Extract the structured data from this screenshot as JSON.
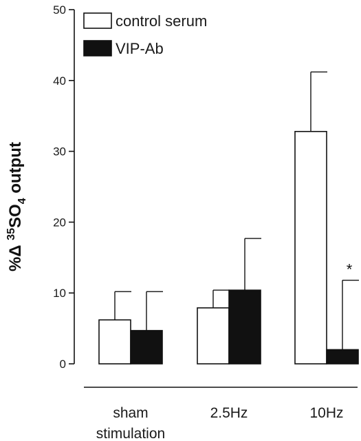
{
  "chart_data": {
    "type": "bar",
    "title": "",
    "ylabel": {
      "prefix": "%Δ ",
      "sup": "35",
      "main": "SO",
      "sub": "4",
      "suffix": " output"
    },
    "xlabel": "",
    "ylim": [
      0,
      50
    ],
    "yticks": [
      0,
      10,
      20,
      30,
      40,
      50
    ],
    "categories": [
      [
        "sham",
        "stimulation"
      ],
      [
        "2.5Hz"
      ],
      [
        "10Hz"
      ]
    ],
    "series": [
      {
        "name": "control serum",
        "color": "#ffffff",
        "values": [
          6.2,
          7.9,
          32.8
        ],
        "error_upper": [
          10.2,
          10.4,
          41.2
        ]
      },
      {
        "name": "VIP-Ab",
        "color": "#111111",
        "values": [
          4.7,
          10.4,
          2.0
        ],
        "error_upper": [
          10.2,
          17.7,
          11.8
        ]
      }
    ],
    "annotations": [
      {
        "text": "*",
        "category_index": 2,
        "series_index": 1
      }
    ],
    "legend_position": "top-left",
    "grid": false
  }
}
